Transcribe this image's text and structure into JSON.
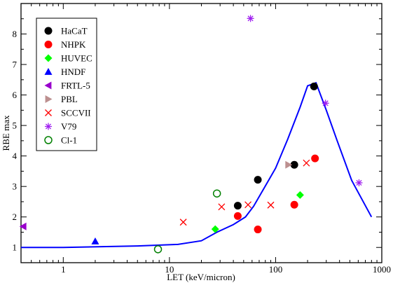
{
  "chart_data": {
    "type": "scatter",
    "x_scale": "log",
    "xlim": [
      0.4,
      1000
    ],
    "ylim": [
      0.5,
      9
    ],
    "xlabel": "LET (keV/micron)",
    "ylabel": "RBE max",
    "x_ticks": [
      {
        "value": 1,
        "label": "1"
      },
      {
        "value": 10,
        "label": "10"
      },
      {
        "value": 100,
        "label": "100"
      },
      {
        "value": 1000,
        "label": "1000"
      }
    ],
    "y_ticks": [
      {
        "value": 1,
        "label": "1"
      },
      {
        "value": 2,
        "label": "2"
      },
      {
        "value": 3,
        "label": "3"
      },
      {
        "value": 4,
        "label": "4"
      },
      {
        "value": 5,
        "label": "5"
      },
      {
        "value": 6,
        "label": "6"
      },
      {
        "value": 7,
        "label": "7"
      },
      {
        "value": 8,
        "label": "8"
      }
    ],
    "grid": false,
    "legend_position": "top-left",
    "series": [
      {
        "name": "HaCaT",
        "marker": "filled-circle",
        "color": "#000000",
        "points": [
          [
            44,
            2.37
          ],
          [
            68,
            3.22
          ],
          [
            150,
            3.71
          ],
          [
            230,
            6.28
          ]
        ]
      },
      {
        "name": "NHPK",
        "marker": "filled-circle",
        "color": "#ff0000",
        "points": [
          [
            44,
            2.03
          ],
          [
            68,
            1.59
          ],
          [
            150,
            2.4
          ],
          [
            235,
            3.92
          ]
        ]
      },
      {
        "name": "HUVEC",
        "marker": "filled-diamond",
        "color": "#00ff00",
        "points": [
          [
            27,
            1.6
          ],
          [
            170,
            2.72
          ]
        ]
      },
      {
        "name": "HNDF",
        "marker": "triangle-up",
        "color": "#0000ff",
        "points": [
          [
            2.0,
            1.2
          ]
        ]
      },
      {
        "name": "FRTL-5",
        "marker": "triangle-left",
        "color": "#9900cc",
        "points": [
          [
            0.42,
            1.69
          ]
        ]
      },
      {
        "name": "PBL",
        "marker": "triangle-right",
        "color": "#bc8f8f",
        "points": [
          [
            132,
            3.71
          ]
        ]
      },
      {
        "name": "SCCVII",
        "marker": "x",
        "color": "#ff0000",
        "points": [
          [
            13.5,
            1.83
          ],
          [
            31,
            2.33
          ],
          [
            55,
            2.4
          ],
          [
            90,
            2.39
          ],
          [
            195,
            3.77
          ]
        ]
      },
      {
        "name": "V79",
        "marker": "asterisk",
        "color": "#a020f0",
        "points": [
          [
            58,
            8.51
          ],
          [
            295,
            5.73
          ],
          [
            610,
            3.12
          ]
        ]
      },
      {
        "name": "Cl-1",
        "marker": "open-circle",
        "color": "#008000",
        "points": [
          [
            7.8,
            0.94
          ],
          [
            28,
            2.77
          ]
        ]
      }
    ],
    "curve": {
      "color": "#0000ff",
      "points": [
        [
          0.4,
          1.0
        ],
        [
          1,
          1.0
        ],
        [
          5,
          1.05
        ],
        [
          12,
          1.1
        ],
        [
          20,
          1.22
        ],
        [
          28,
          1.5
        ],
        [
          40,
          1.75
        ],
        [
          52,
          2.0
        ],
        [
          62,
          2.35
        ],
        [
          78,
          2.95
        ],
        [
          100,
          3.6
        ],
        [
          130,
          4.55
        ],
        [
          170,
          5.6
        ],
        [
          200,
          6.3
        ],
        [
          240,
          6.4
        ],
        [
          300,
          5.5
        ],
        [
          380,
          4.5
        ],
        [
          520,
          3.2
        ],
        [
          800,
          2.0
        ]
      ]
    }
  }
}
